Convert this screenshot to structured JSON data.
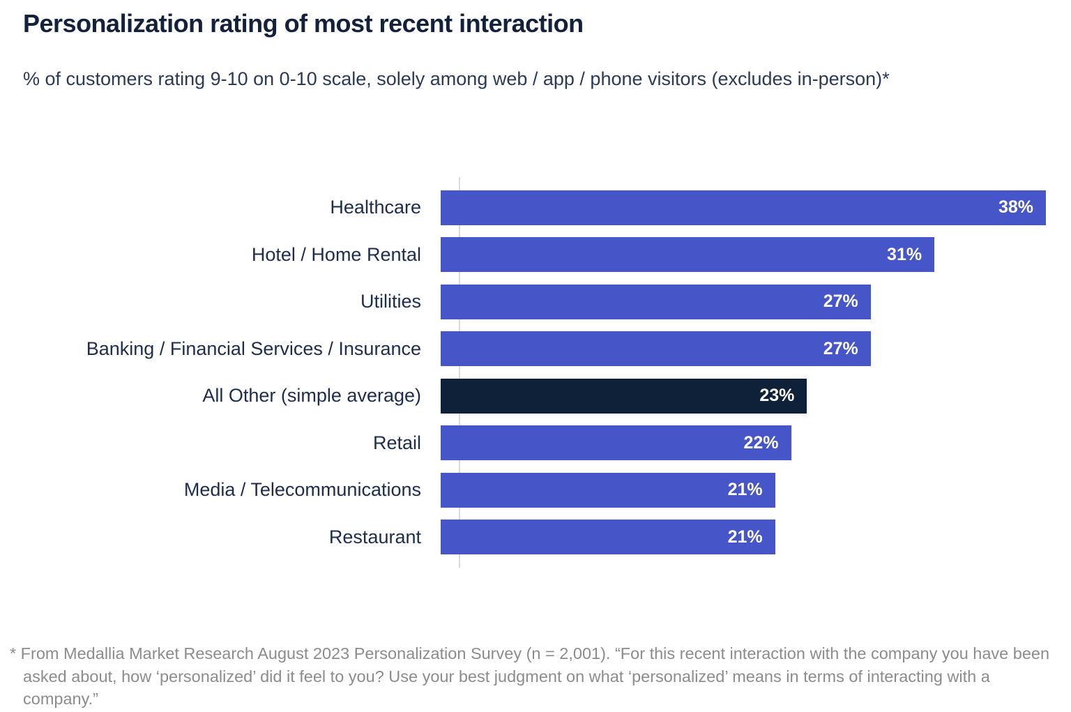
{
  "title": "Personalization rating of most recent interaction",
  "subtitle": "% of customers rating 9-10 on 0-10 scale, solely among web / app / phone visitors (excludes in-person)*",
  "footnote": "* From Medallia Market Research August 2023 Personalization Survey (n = 2,001). “For this recent interaction with the company you have been asked about, how ‘personalized’ did it feel to you? Use your best judgment on what ‘personalized’ means in terms of interacting with a company.”",
  "colors": {
    "bar": "#4655c8",
    "highlight_bar": "#0e2138",
    "title_text": "#14213d",
    "subtitle_text": "#2a3a57",
    "label_text": "#1d2d50",
    "value_text": "#ffffff",
    "footnote_text": "#8c8c8c",
    "axis_line": "#d9d9d9"
  },
  "chart_data": {
    "type": "bar",
    "orientation": "horizontal",
    "title": "Personalization rating of most recent interaction",
    "subtitle": "% of customers rating 9-10 on 0-10 scale, solely among web / app / phone visitors (excludes in-person)*",
    "categories": [
      "Healthcare",
      "Hotel / Home Rental",
      "Utilities",
      "Banking / Financial Services / Insurance",
      "All Other (simple average)",
      "Retail",
      "Media / Telecommunications",
      "Restaurant"
    ],
    "values": [
      38,
      31,
      27,
      27,
      23,
      22,
      21,
      21
    ],
    "value_labels": [
      "38%",
      "31%",
      "27%",
      "27%",
      "23%",
      "22%",
      "21%",
      "21%"
    ],
    "highlighted_category": "All Other (simple average)",
    "unit": "%",
    "xlim": [
      0,
      38
    ],
    "grid": false,
    "legend": false,
    "value_label_position": "inside-end",
    "category_label_position": "left"
  }
}
